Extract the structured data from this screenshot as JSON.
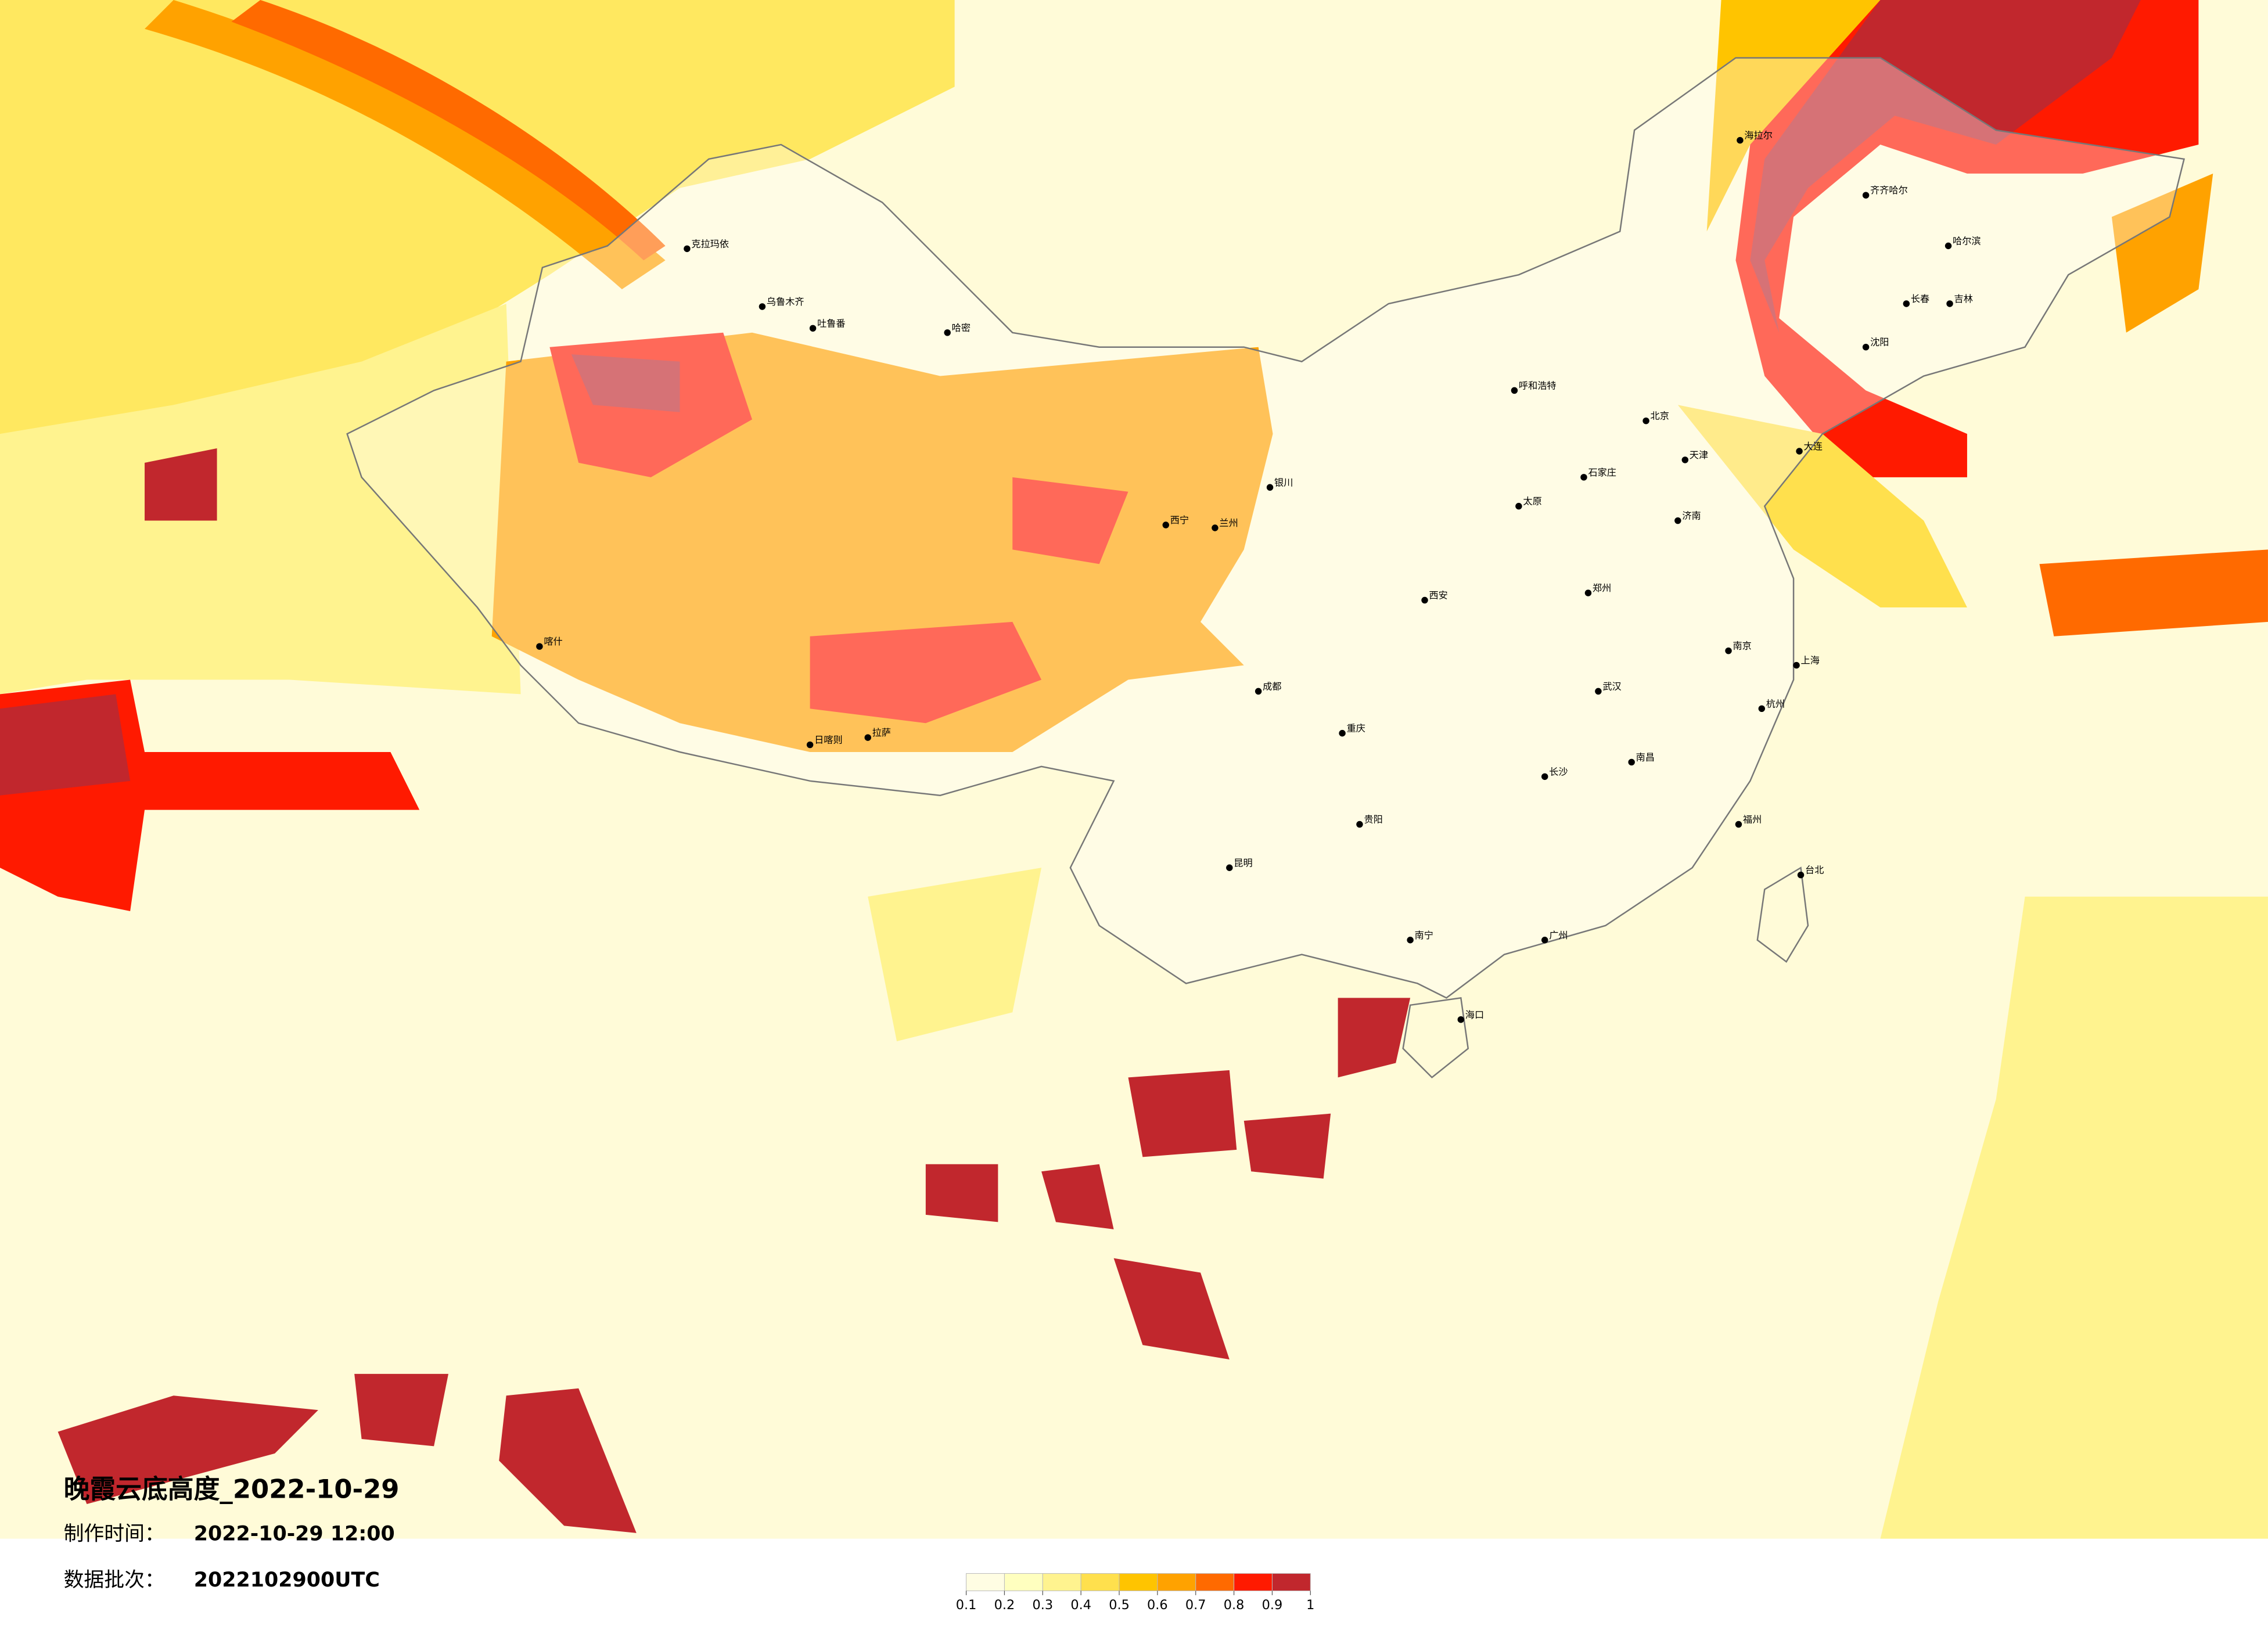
{
  "title": "晚霞云底高度_2022-10-29",
  "production_label": "制作时间：",
  "production_time": "2022-10-29 12:00",
  "batch_label": "数据批次：",
  "batch": "2022102900UTC",
  "legend": {
    "ticks": [
      0.1,
      0.2,
      0.3,
      0.4,
      0.5,
      0.6,
      0.7,
      0.8,
      0.9,
      1
    ],
    "colors": [
      "#fffde3",
      "#ffffbf",
      "#fff38f",
      "#ffe04d",
      "#ffc400",
      "#ffa200",
      "#ff6a00",
      "#ff1a00",
      "#c1272d"
    ]
  },
  "cities": [
    "克拉玛依",
    "乌鲁木齐",
    "吐鲁番",
    "哈密",
    "喀什",
    "海拉尔",
    "齐齐哈尔",
    "哈尔滨",
    "长春",
    "吉林",
    "沈阳",
    "大连",
    "北京",
    "天津",
    "石家庄",
    "太原",
    "郑州",
    "济南",
    "南京",
    "上海",
    "杭州",
    "武汉",
    "长沙",
    "南昌",
    "福州",
    "台北",
    "广州",
    "南宁",
    "海口",
    "昆明",
    "贵阳",
    "成都",
    "重庆",
    "西安",
    "兰州",
    "西宁",
    "银川",
    "呼和浩特",
    "拉萨",
    "日喀则"
  ]
}
